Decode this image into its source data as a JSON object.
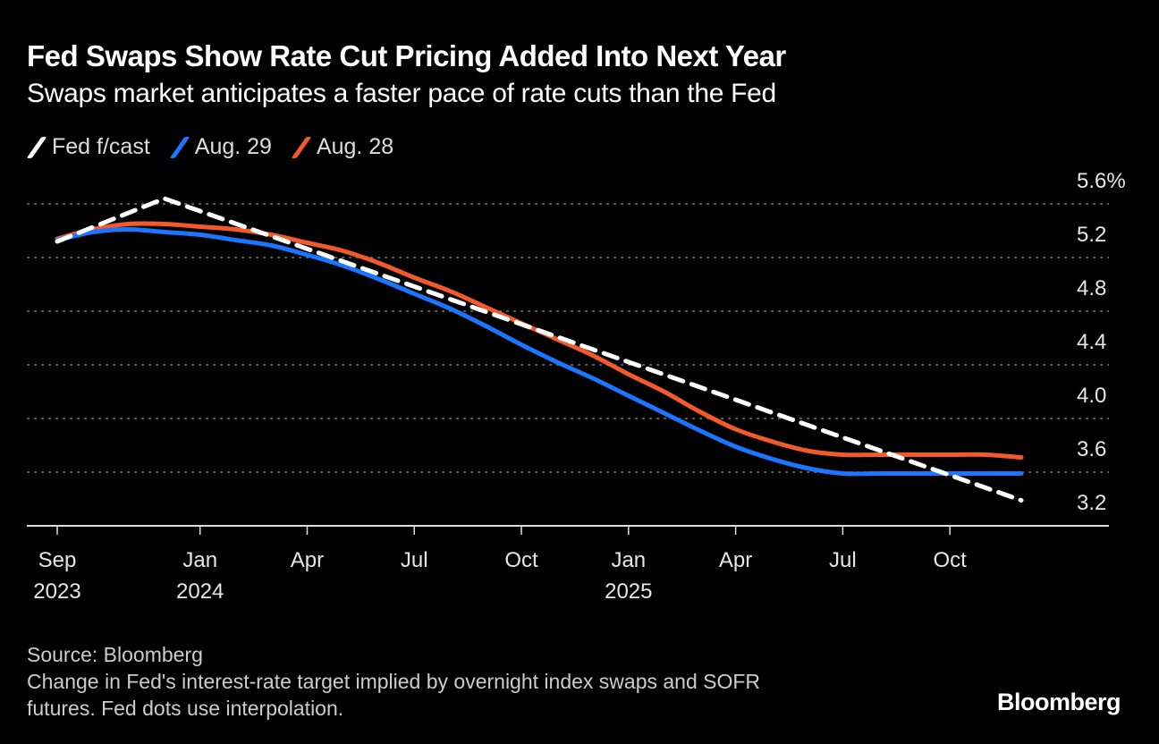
{
  "chart_data": {
    "type": "line",
    "title": "Fed Swaps Show Rate Cut Pricing Added Into Next Year",
    "subtitle": "Swaps market anticipates a faster pace of rate cuts than the Fed",
    "xlabel": "",
    "ylabel": "",
    "y_unit": "%",
    "ylim": [
      3.2,
      5.6
    ],
    "yticks": [
      "5.6%",
      "5.2",
      "4.8",
      "4.4",
      "4.0",
      "3.6",
      "3.2"
    ],
    "ytick_values": [
      5.6,
      5.2,
      4.8,
      4.4,
      4.0,
      3.6,
      3.2
    ],
    "grid": true,
    "legend_position": "top-left",
    "x": [
      "2023-09",
      "2023-10",
      "2023-11",
      "2023-12",
      "2024-01",
      "2024-02",
      "2024-03",
      "2024-04",
      "2024-05",
      "2024-06",
      "2024-07",
      "2024-08",
      "2024-09",
      "2024-10",
      "2024-11",
      "2024-12",
      "2025-01",
      "2025-02",
      "2025-03",
      "2025-04",
      "2025-05",
      "2025-06",
      "2025-07",
      "2025-08",
      "2025-09",
      "2025-10",
      "2025-11",
      "2025-12"
    ],
    "xticks": [
      {
        "month": "Sep",
        "year": "2023",
        "index": 0
      },
      {
        "month": "Jan",
        "year": "2024",
        "index": 4
      },
      {
        "month": "Apr",
        "year": "",
        "index": 7
      },
      {
        "month": "Jul",
        "year": "",
        "index": 10
      },
      {
        "month": "Oct",
        "year": "",
        "index": 13
      },
      {
        "month": "Jan",
        "year": "2025",
        "index": 16
      },
      {
        "month": "Apr",
        "year": "",
        "index": 19
      },
      {
        "month": "Jul",
        "year": "",
        "index": 22
      },
      {
        "month": "Oct",
        "year": "",
        "index": 25
      }
    ],
    "series": [
      {
        "name": "Fed f/cast",
        "color": "#ffffff",
        "style": "dashed",
        "points": [
          [
            0,
            5.32
          ],
          [
            3,
            5.64
          ],
          [
            27,
            3.39
          ]
        ]
      },
      {
        "name": "Aug. 29",
        "color": "#1a75ff",
        "style": "solid",
        "values": [
          5.33,
          5.39,
          5.41,
          5.39,
          5.37,
          5.33,
          5.29,
          5.22,
          5.14,
          5.04,
          4.93,
          4.82,
          4.69,
          4.55,
          4.42,
          4.3,
          4.17,
          4.04,
          3.91,
          3.79,
          3.7,
          3.63,
          3.59,
          3.59,
          3.59,
          3.59,
          3.59,
          3.59
        ]
      },
      {
        "name": "Aug. 28",
        "color": "#f25a2c",
        "style": "solid",
        "values": [
          5.34,
          5.41,
          5.45,
          5.45,
          5.43,
          5.41,
          5.37,
          5.31,
          5.25,
          5.16,
          5.05,
          4.95,
          4.83,
          4.71,
          4.59,
          4.47,
          4.33,
          4.2,
          4.05,
          3.92,
          3.83,
          3.76,
          3.73,
          3.73,
          3.73,
          3.73,
          3.73,
          3.71
        ]
      }
    ]
  },
  "footer": {
    "source": "Source: Bloomberg",
    "note_line1": "Change in Fed's interest-rate target implied by overnight index swaps and SOFR",
    "note_line2": "futures. Fed dots use interpolation.",
    "brand": "Bloomberg"
  }
}
